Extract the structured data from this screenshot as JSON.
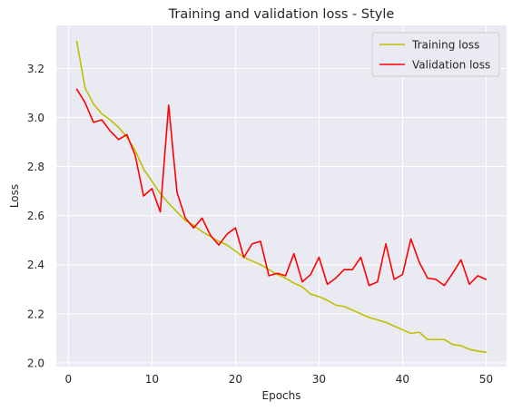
{
  "chart_data": {
    "type": "line",
    "title": "Training and validation loss - Style",
    "xlabel": "Epochs",
    "ylabel": "Loss",
    "xlim": [
      -1.45,
      52.45
    ],
    "ylim": [
      1.985,
      3.375
    ],
    "xticks": [
      0,
      10,
      20,
      30,
      40,
      50
    ],
    "xtick_labels": [
      "0",
      "10",
      "20",
      "30",
      "40",
      "50"
    ],
    "yticks": [
      2.0,
      2.2,
      2.4,
      2.6,
      2.8,
      3.0,
      3.2
    ],
    "ytick_labels": [
      "2.0",
      "2.2",
      "2.4",
      "2.6",
      "2.8",
      "3.0",
      "3.2"
    ],
    "grid": true,
    "legend_position": "upper right",
    "x": [
      1,
      2,
      3,
      4,
      5,
      6,
      7,
      8,
      9,
      10,
      11,
      12,
      13,
      14,
      15,
      16,
      17,
      18,
      19,
      20,
      21,
      22,
      23,
      24,
      25,
      26,
      27,
      28,
      29,
      30,
      31,
      32,
      33,
      34,
      35,
      36,
      37,
      38,
      39,
      40,
      41,
      42,
      43,
      44,
      45,
      46,
      47,
      48,
      49,
      50
    ],
    "series": [
      {
        "name": "Training loss",
        "color": "#bfbf00",
        "values": [
          3.31,
          3.12,
          3.055,
          3.015,
          2.99,
          2.96,
          2.92,
          2.865,
          2.79,
          2.74,
          2.69,
          2.65,
          2.615,
          2.58,
          2.56,
          2.535,
          2.515,
          2.495,
          2.48,
          2.455,
          2.43,
          2.415,
          2.4,
          2.38,
          2.36,
          2.345,
          2.325,
          2.31,
          2.28,
          2.27,
          2.255,
          2.235,
          2.23,
          2.215,
          2.2,
          2.185,
          2.175,
          2.165,
          2.15,
          2.135,
          2.12,
          2.125,
          2.095,
          2.095,
          2.095,
          2.075,
          2.07,
          2.055,
          2.048,
          2.043
        ]
      },
      {
        "name": "Validation loss",
        "color": "#ff0000",
        "values": [
          3.115,
          3.06,
          2.98,
          2.99,
          2.945,
          2.91,
          2.93,
          2.845,
          2.68,
          2.71,
          2.615,
          3.05,
          2.695,
          2.59,
          2.55,
          2.59,
          2.52,
          2.48,
          2.525,
          2.55,
          2.43,
          2.485,
          2.495,
          2.355,
          2.365,
          2.355,
          2.445,
          2.33,
          2.36,
          2.43,
          2.32,
          2.345,
          2.38,
          2.38,
          2.43,
          2.315,
          2.33,
          2.485,
          2.34,
          2.36,
          2.505,
          2.41,
          2.345,
          2.34,
          2.315,
          2.365,
          2.42,
          2.32,
          2.355,
          2.34
        ]
      }
    ]
  },
  "style": {
    "plot_bg": "#eaeaf2",
    "grid_color": "#ffffff",
    "text_color": "#262626"
  }
}
